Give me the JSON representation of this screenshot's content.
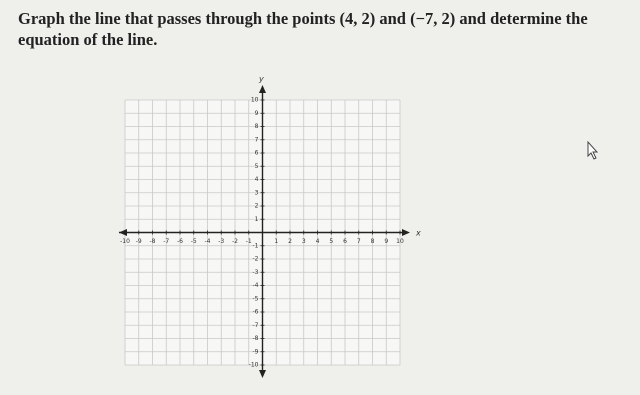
{
  "question": "Graph the line that passes through the points (4, 2) and (−7, 2) and determine the equation of the line.",
  "graph": {
    "x_label": "x",
    "y_label": "y",
    "xlim": [
      -10,
      10
    ],
    "ylim": [
      -10,
      10
    ],
    "xticks": [
      -10,
      -9,
      -8,
      -7,
      -6,
      -5,
      -4,
      -3,
      -2,
      -1,
      1,
      2,
      3,
      4,
      5,
      6,
      7,
      8,
      9,
      10
    ],
    "yticks": [
      -10,
      -9,
      -8,
      -7,
      -6,
      -5,
      -4,
      -3,
      -2,
      -1,
      1,
      2,
      3,
      4,
      5,
      6,
      7,
      8,
      9,
      10
    ],
    "grid": true
  }
}
